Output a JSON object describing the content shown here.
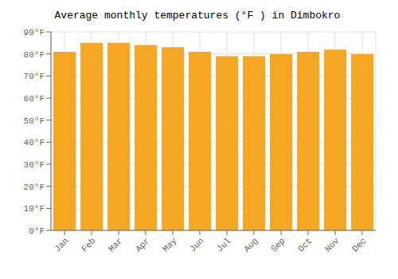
{
  "chart_data": {
    "type": "bar",
    "title": "Average monthly temperatures (°F ) in Dimbokro",
    "categories": [
      "Jan",
      "Feb",
      "Mar",
      "Apr",
      "May",
      "Jun",
      "Jul",
      "Aug",
      "Sep",
      "Oct",
      "Nov",
      "Dec"
    ],
    "values": [
      81,
      85,
      85,
      84,
      83,
      81,
      79,
      79,
      80,
      81,
      82,
      80
    ],
    "color": "#F5A623",
    "ylim": [
      0,
      90
    ],
    "yticks": [
      {
        "value": 0,
        "label": "0°F"
      },
      {
        "value": 10,
        "label": "10°F"
      },
      {
        "value": 20,
        "label": "20°F"
      },
      {
        "value": 30,
        "label": "30°F"
      },
      {
        "value": 40,
        "label": "40°F"
      },
      {
        "value": 50,
        "label": "50°F"
      },
      {
        "value": 60,
        "label": "60°F"
      },
      {
        "value": 70,
        "label": "70°F"
      },
      {
        "value": 80,
        "label": "80°F"
      },
      {
        "value": 90,
        "label": "90°F"
      }
    ],
    "grid": true
  }
}
